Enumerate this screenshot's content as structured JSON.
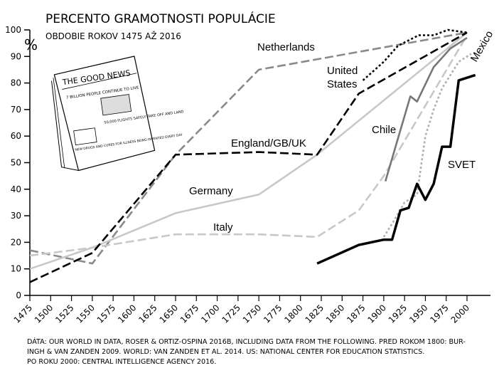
{
  "chart_data": {
    "type": "line",
    "title": "PERCENTO GRAMOTNOSTI POPULÁCIE",
    "subtitle": "OBDOBIE ROKOV 1475 AŽ 2016",
    "ylabel": "%",
    "xlim": [
      1475,
      2016
    ],
    "ylim": [
      0,
      100
    ],
    "yticks": [
      0,
      10,
      20,
      30,
      40,
      50,
      60,
      70,
      80,
      90,
      100
    ],
    "xticks": [
      1475,
      1500,
      1525,
      1550,
      1575,
      1600,
      1625,
      1650,
      1675,
      1700,
      1725,
      1750,
      1775,
      1800,
      1825,
      1850,
      1875,
      1900,
      1925,
      1950,
      1975,
      2000
    ],
    "grid": false,
    "series": [
      {
        "name": "Netherlands",
        "color": "#8a8a8a",
        "style": "dashed",
        "x": [
          1475,
          1550,
          1650,
          1750,
          2000
        ],
        "y": [
          17,
          12,
          53,
          85,
          99
        ]
      },
      {
        "name": "Italy",
        "color": "#c8c8c8",
        "style": "dashed",
        "x": [
          1475,
          1550,
          1650,
          1750,
          1820,
          1870,
          1900,
          2000
        ],
        "y": [
          15,
          18,
          23,
          23,
          22,
          32,
          45,
          98
        ]
      },
      {
        "name": "Germany",
        "color": "#c8c8c8",
        "style": "solid",
        "x": [
          1475,
          1550,
          1650,
          1750,
          1820,
          2000
        ],
        "y": [
          10,
          18,
          31,
          38,
          53,
          99
        ]
      },
      {
        "name": "Mexico",
        "color": "#b0b0b0",
        "style": "dotted",
        "x": [
          1900,
          1910,
          1925,
          1940,
          1950,
          1960,
          1970,
          1990,
          2005
        ],
        "y": [
          22,
          27,
          35,
          38,
          60,
          70,
          78,
          88,
          91
        ]
      },
      {
        "name": "Chile",
        "color": "#777777",
        "style": "solid",
        "x": [
          1902,
          1932,
          1940,
          1960,
          1980,
          2000
        ],
        "y": [
          43,
          75,
          73,
          86,
          93,
          97
        ]
      },
      {
        "name": "England/GB/UK",
        "color": "#000000",
        "style": "dashed",
        "x": [
          1475,
          1550,
          1650,
          1750,
          1820,
          1870,
          2000
        ],
        "y": [
          5,
          16,
          53,
          54,
          53,
          76,
          99
        ]
      },
      {
        "name": "United States",
        "color": "#000000",
        "style": "dotted",
        "x": [
          1875,
          1900,
          1917,
          1942,
          1960,
          1977,
          2000
        ],
        "y": [
          81,
          88,
          94,
          98,
          98,
          100,
          99
        ]
      },
      {
        "name": "SVET",
        "color": "#000000",
        "style": "solid",
        "x": [
          1820,
          1870,
          1900,
          1910,
          1920,
          1930,
          1940,
          1950,
          1960,
          1970,
          1980,
          1990,
          2010
        ],
        "y": [
          12,
          19,
          21,
          21,
          32,
          33,
          42,
          36,
          42,
          56,
          56,
          81,
          83
        ]
      }
    ],
    "annotations": {
      "newspaper": "THE GOOD NEWS",
      "newspaper_lines": [
        "7 BILLION PEOPLE CONTINUE TO LIVE",
        "50,000 FLIGHTS SAFELY TAKE OFF AND LAND",
        "NEW DRUGS AND CURES FOR ILLNESS BEING INVENTED EVERY DAY"
      ]
    },
    "source": [
      "DÁTA: OUR WORLD IN DATA, ROSER & ORTIZ-OSPINA 2016B, INCLUDING DATA FROM THE FOLLOWING. PRED ROKOM 1800: BUR-",
      "INGH & VAN ZANDEN 2009. WORLD: VAN ZANDEN ET AL. 2014. US: NATIONAL CENTER FOR EDUCATION STATISTICS.",
      "PO ROKU 2000: CENTRAL INTELLIGENCE AGENCY 2016."
    ]
  }
}
